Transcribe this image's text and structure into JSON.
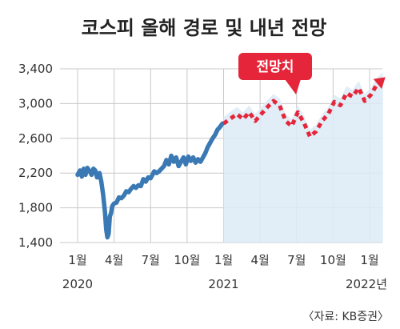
{
  "chart_data": {
    "type": "line",
    "title": "코스피 올해 경로 및 내년 전망",
    "ylim": [
      1400,
      3400
    ],
    "y_ticks": [
      "3,400",
      "3,000",
      "2,600",
      "2,200",
      "1,800",
      "1,400"
    ],
    "y_tick_values": [
      3400,
      3000,
      2600,
      2200,
      1800,
      1400
    ],
    "x_ticks": [
      "1월",
      "4월",
      "7월",
      "10월",
      "1월",
      "4월",
      "7월",
      "10월",
      "1월"
    ],
    "x_tick_months": [
      0,
      3,
      6,
      9,
      12,
      15,
      18,
      21,
      24
    ],
    "year_labels": [
      {
        "text": "2020",
        "month": 0
      },
      {
        "text": "2021",
        "month": 12
      },
      {
        "text": "2022년",
        "month": 24
      }
    ],
    "series": [
      {
        "style": "solid",
        "x": [
          0.0,
          0.2,
          0.35,
          0.5,
          0.65,
          0.8,
          1.0,
          1.15,
          1.3,
          1.45,
          1.6,
          1.8,
          1.95,
          2.1,
          2.25,
          2.35,
          2.45,
          2.55,
          2.65,
          2.75,
          2.85,
          3.0,
          3.2,
          3.4,
          3.6,
          3.8,
          4.0,
          4.2,
          4.4,
          4.6,
          4.8,
          5.0,
          5.2,
          5.4,
          5.6,
          5.8,
          6.0,
          6.15,
          6.3,
          6.5,
          6.7,
          6.9,
          7.1,
          7.3,
          7.5,
          7.7,
          7.9,
          8.1,
          8.3,
          8.5,
          8.7,
          8.9,
          9.1,
          9.3,
          9.5,
          9.7,
          9.9,
          10.1,
          10.3,
          10.5,
          10.7,
          10.9,
          11.1,
          11.3,
          11.5,
          11.7,
          11.9
        ],
        "y": [
          2180,
          2230,
          2160,
          2250,
          2180,
          2260,
          2220,
          2180,
          2250,
          2230,
          2150,
          2200,
          2100,
          1950,
          1750,
          1550,
          1460,
          1500,
          1700,
          1740,
          1820,
          1850,
          1860,
          1920,
          1910,
          1940,
          1990,
          1980,
          2020,
          2050,
          2030,
          2060,
          2050,
          2130,
          2100,
          2150,
          2140,
          2180,
          2220,
          2200,
          2220,
          2250,
          2280,
          2350,
          2300,
          2400,
          2330,
          2380,
          2280,
          2330,
          2380,
          2300,
          2390,
          2340,
          2380,
          2320,
          2360,
          2330,
          2380,
          2430,
          2500,
          2550,
          2600,
          2640,
          2700,
          2730,
          2770
        ]
      },
      {
        "name": "전망치",
        "style": "dotted",
        "x": [
          12.0,
          12.6,
          13.1,
          13.6,
          14.1,
          14.6,
          15.1,
          15.6,
          16.1,
          16.6,
          17.1,
          17.6,
          18.1,
          18.6,
          19.1,
          19.6,
          20.1,
          20.6,
          21.1,
          21.6,
          22.1,
          22.6,
          23.1,
          23.6,
          24.1,
          24.6,
          25.1
        ],
        "y": [
          2770,
          2830,
          2880,
          2820,
          2900,
          2800,
          2880,
          2960,
          3030,
          2980,
          2800,
          2740,
          2900,
          2780,
          2620,
          2680,
          2800,
          2880,
          3020,
          2980,
          3120,
          3080,
          3180,
          3030,
          3100,
          3220,
          3280
        ]
      }
    ],
    "callout": {
      "text": "전망치"
    },
    "source": "〈자료: KB증권〉",
    "colors": {
      "actual": "#3a79b4",
      "forecast": "#e5263a",
      "band": "#dcebf6",
      "grid": "#c8c8c8",
      "callout": "#e5263a"
    }
  }
}
